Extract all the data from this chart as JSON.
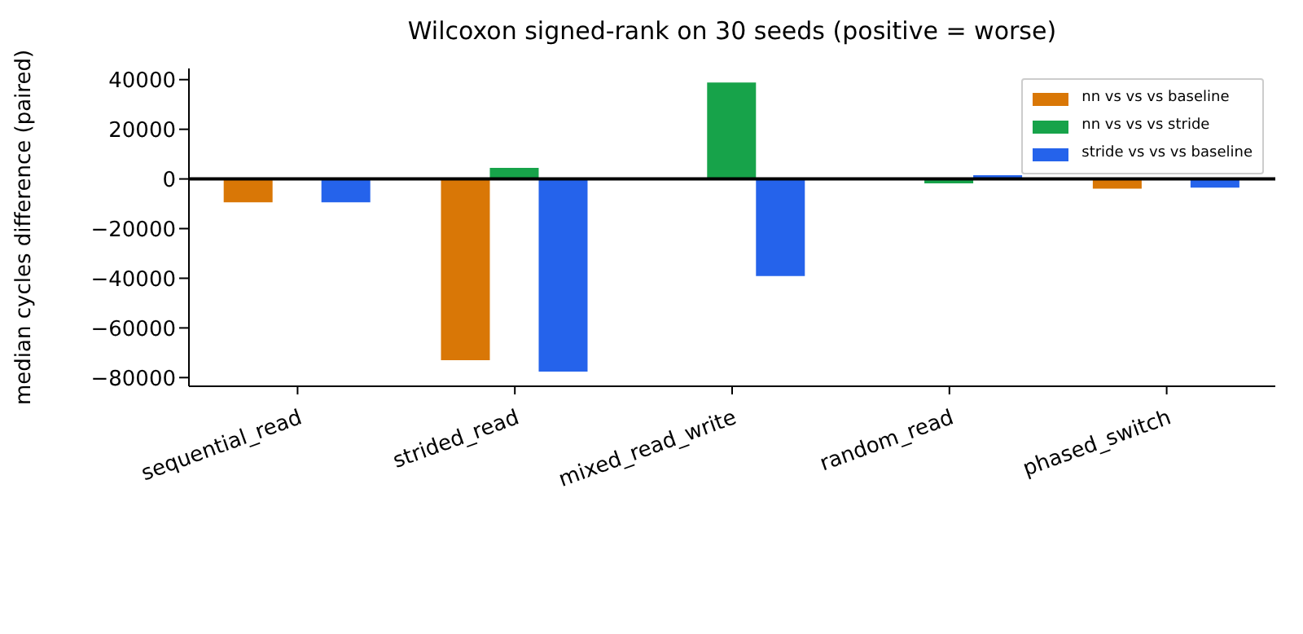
{
  "chart_data": {
    "type": "bar",
    "title": "Wilcoxon signed-rank on 30 seeds (positive = worse)",
    "ylabel": "median cycles difference (paired)",
    "categories": [
      "sequential_read",
      "strided_read",
      "mixed_read_write",
      "random_read",
      "phased_switch"
    ],
    "series": [
      {
        "name": "nn vs vs vs baseline",
        "color": "#d97706",
        "values": [
          -9400,
          -73000,
          null,
          null,
          -3900
        ]
      },
      {
        "name": "nn vs vs vs stride",
        "color": "#17a34a",
        "values": [
          null,
          4500,
          38800,
          -1800,
          null
        ]
      },
      {
        "name": "stride vs vs vs baseline",
        "color": "#2563eb",
        "values": [
          -9400,
          -77600,
          -39100,
          1500,
          -3500
        ]
      }
    ],
    "ylim": [
      -83500,
      44500
    ],
    "yticks": [
      -80000,
      -60000,
      -40000,
      -20000,
      0,
      20000,
      40000
    ],
    "ref_lines": [
      {
        "axis": "y",
        "value": 0,
        "color": "#000000"
      }
    ],
    "legend": "top right",
    "grid": false
  }
}
